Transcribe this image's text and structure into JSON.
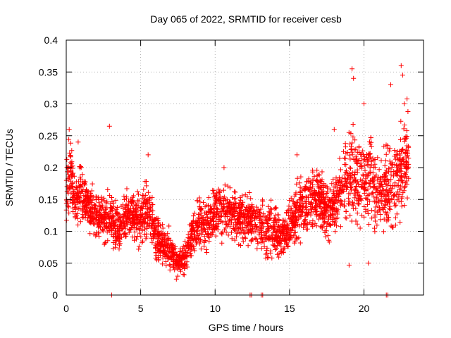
{
  "chart_data": {
    "type": "scatter",
    "title": "Day 065 of 2022, SRMTID for receiver cesb",
    "xlabel": "GPS time / hours",
    "ylabel": "SRMTID / TECUs",
    "xlim": [
      0,
      24
    ],
    "ylim": [
      0,
      0.4
    ],
    "xticks": [
      0,
      5,
      10,
      15,
      20
    ],
    "xtick_labels": [
      "0",
      "5",
      "10",
      "15",
      "20"
    ],
    "yticks": [
      0,
      0.05,
      0.1,
      0.15,
      0.2,
      0.25,
      0.3,
      0.35,
      0.4
    ],
    "ytick_labels": [
      "0",
      "0.05",
      "0.1",
      "0.15",
      "0.2",
      "0.25",
      "0.3",
      "0.35",
      "0.4"
    ],
    "grid": true,
    "marker": "+",
    "color": "#ff0000",
    "series": [
      {
        "name": "SRMTID",
        "profile": {
          "x": [
            0.0,
            0.3,
            0.6,
            1.0,
            1.5,
            2.0,
            2.5,
            3.0,
            3.5,
            4.0,
            4.5,
            5.0,
            5.5,
            6.0,
            6.5,
            7.0,
            7.5,
            8.0,
            8.5,
            9.0,
            9.5,
            10.0,
            10.5,
            11.0,
            11.5,
            12.0,
            12.5,
            13.0,
            13.5,
            14.0,
            14.5,
            15.0,
            15.5,
            16.0,
            16.5,
            17.0,
            17.5,
            18.0,
            18.5,
            19.0,
            19.5,
            20.0,
            20.5,
            21.0,
            21.5,
            22.0,
            22.5,
            23.0
          ],
          "y": [
            0.17,
            0.19,
            0.14,
            0.16,
            0.14,
            0.13,
            0.12,
            0.12,
            0.1,
            0.12,
            0.13,
            0.12,
            0.14,
            0.09,
            0.08,
            0.07,
            0.05,
            0.06,
            0.1,
            0.11,
            0.11,
            0.13,
            0.13,
            0.13,
            0.12,
            0.12,
            0.12,
            0.11,
            0.1,
            0.1,
            0.09,
            0.11,
            0.13,
            0.14,
            0.15,
            0.15,
            0.13,
            0.14,
            0.17,
            0.19,
            0.17,
            0.18,
            0.19,
            0.15,
            0.17,
            0.17,
            0.2,
            0.22
          ],
          "spread": [
            0.05,
            0.06,
            0.05,
            0.05,
            0.04,
            0.04,
            0.04,
            0.05,
            0.04,
            0.04,
            0.04,
            0.05,
            0.05,
            0.04,
            0.03,
            0.03,
            0.02,
            0.03,
            0.04,
            0.04,
            0.04,
            0.04,
            0.05,
            0.04,
            0.04,
            0.04,
            0.04,
            0.04,
            0.04,
            0.04,
            0.03,
            0.04,
            0.05,
            0.05,
            0.05,
            0.05,
            0.05,
            0.05,
            0.06,
            0.08,
            0.07,
            0.07,
            0.07,
            0.06,
            0.07,
            0.08,
            0.09,
            0.08
          ],
          "count_per_hour": 130
        },
        "peaks": [
          {
            "x": 0.2,
            "y": 0.26
          },
          {
            "x": 0.8,
            "y": 0.24
          },
          {
            "x": 2.9,
            "y": 0.265
          },
          {
            "x": 5.5,
            "y": 0.22
          },
          {
            "x": 10.6,
            "y": 0.2
          },
          {
            "x": 15.5,
            "y": 0.22
          },
          {
            "x": 18.0,
            "y": 0.26
          },
          {
            "x": 19.2,
            "y": 0.355
          },
          {
            "x": 19.3,
            "y": 0.34
          },
          {
            "x": 20.0,
            "y": 0.3
          },
          {
            "x": 21.8,
            "y": 0.33
          },
          {
            "x": 22.5,
            "y": 0.36
          },
          {
            "x": 22.6,
            "y": 0.345
          },
          {
            "x": 22.7,
            "y": 0.3
          },
          {
            "x": 20.3,
            "y": 0.05
          },
          {
            "x": 19.0,
            "y": 0.047
          },
          {
            "x": 7.4,
            "y": 0.025
          }
        ],
        "zero_points_x": [
          3.05,
          12.35,
          12.45,
          13.1,
          13.2,
          21.5,
          21.6
        ]
      }
    ]
  }
}
